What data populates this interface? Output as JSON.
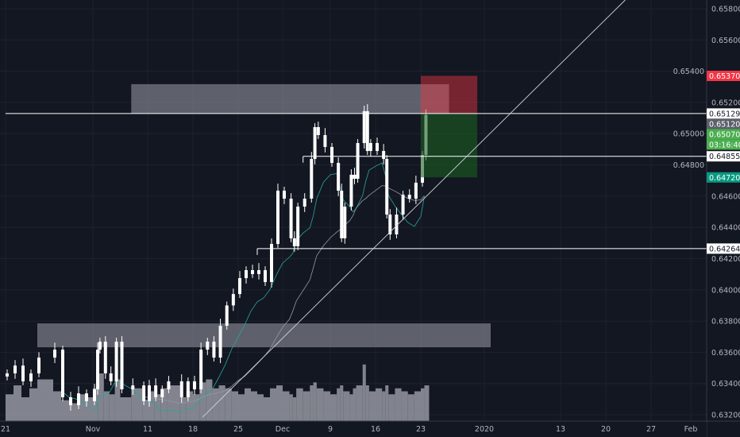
{
  "chart_data": {
    "type": "candlestick",
    "symbol_pair_quote": "",
    "y_axis": {
      "range": [
        0.6318,
        0.659
      ],
      "ticks": [
        "0.65800",
        "0.65600",
        "0.65400",
        "0.65200",
        "0.65000",
        "0.64800",
        "0.64600",
        "0.64400",
        "0.64200",
        "0.64000",
        "0.63800",
        "0.63600",
        "0.63400",
        "0.63200"
      ],
      "tick_values": [
        0.658,
        0.656,
        0.654,
        0.652,
        0.65,
        0.648,
        0.646,
        0.644,
        0.642,
        0.64,
        0.638,
        0.636,
        0.634,
        0.632
      ]
    },
    "x_axis": {
      "ticks": [
        {
          "label": "21",
          "date": "2019-10-21"
        },
        {
          "label": "Nov",
          "date": "2019-11-01"
        },
        {
          "label": "11",
          "date": "2019-11-11"
        },
        {
          "label": "18",
          "date": "2019-11-18"
        },
        {
          "label": "25",
          "date": "2019-11-25"
        },
        {
          "label": "Dec",
          "date": "2019-12-02"
        },
        {
          "label": "9",
          "date": "2019-12-09"
        },
        {
          "label": "16",
          "date": "2019-12-16"
        },
        {
          "label": "23",
          "date": "2019-12-23"
        },
        {
          "label": "2020",
          "date": "2020-01-01"
        },
        {
          "label": "13",
          "date": "2020-01-13"
        },
        {
          "label": "20",
          "date": "2020-01-20"
        },
        {
          "label": "27",
          "date": "2020-01-27"
        },
        {
          "label": "Feb",
          "date": "2020-02-03"
        }
      ]
    },
    "grid": true,
    "closes": [
      [
        "2019-10-21",
        0.63465
      ],
      [
        "2019-10-22",
        0.63515
      ],
      [
        "2019-10-23",
        0.63414
      ],
      [
        "2019-10-24",
        0.63465
      ],
      [
        "2019-10-25",
        0.63566
      ],
      [
        "2019-10-27",
        0.63617
      ],
      [
        "2019-10-28",
        0.63312
      ],
      [
        "2019-10-29",
        0.63261
      ],
      [
        "2019-10-30",
        0.63337
      ],
      [
        "2019-10-31",
        0.63287
      ],
      [
        "2019-11-01",
        0.63363
      ],
      [
        "2019-11-01T14",
        0.63617
      ],
      [
        "2019-11-02",
        0.63668
      ],
      [
        "2019-11-03",
        0.63465
      ],
      [
        "2019-11-04",
        0.63414
      ],
      [
        "2019-11-05",
        0.63668
      ],
      [
        "2019-11-06",
        0.63363
      ],
      [
        "2019-11-08",
        0.63388
      ],
      [
        "2019-11-10",
        0.63287
      ],
      [
        "2019-11-11",
        0.63388
      ],
      [
        "2019-11-12",
        0.63312
      ],
      [
        "2019-11-13",
        0.63363
      ],
      [
        "2019-11-14",
        0.63414
      ],
      [
        "2019-11-16",
        0.63312
      ],
      [
        "2019-11-17",
        0.63414
      ],
      [
        "2019-11-18",
        0.63363
      ],
      [
        "2019-11-19",
        0.63617
      ],
      [
        "2019-11-20",
        0.63668
      ],
      [
        "2019-11-21",
        0.63566
      ],
      [
        "2019-11-22",
        0.6377
      ],
      [
        "2019-11-23",
        0.639
      ],
      [
        "2019-11-24",
        0.63973
      ],
      [
        "2019-11-25",
        0.64075
      ],
      [
        "2019-11-26",
        0.64126
      ],
      [
        "2019-11-27",
        0.64101
      ],
      [
        "2019-11-28",
        0.64126
      ],
      [
        "2019-11-29",
        0.6405
      ],
      [
        "2019-11-30",
        0.64294
      ],
      [
        "2019-12-01",
        0.64635
      ],
      [
        "2019-12-02",
        0.64584
      ],
      [
        "2019-12-03",
        0.6433
      ],
      [
        "2019-12-03T12",
        0.64279
      ],
      [
        "2019-12-04",
        0.64533
      ],
      [
        "2019-12-05",
        0.64584
      ],
      [
        "2019-12-06",
        0.64838
      ],
      [
        "2019-12-06T12",
        0.65042
      ],
      [
        "2019-12-07",
        0.64991
      ],
      [
        "2019-12-08",
        0.64915
      ],
      [
        "2019-12-09",
        0.64813
      ],
      [
        "2019-12-10",
        0.64635
      ],
      [
        "2019-12-10T12",
        0.6433
      ],
      [
        "2019-12-11",
        0.64533
      ],
      [
        "2019-12-12",
        0.64737
      ],
      [
        "2019-12-12T12",
        0.64711
      ],
      [
        "2019-12-13",
        0.6494
      ],
      [
        "2019-12-14",
        0.65144
      ],
      [
        "2019-12-14T12",
        0.64889
      ],
      [
        "2019-12-15",
        0.6494
      ],
      [
        "2019-12-16",
        0.64889
      ],
      [
        "2019-12-17",
        0.64838
      ],
      [
        "2019-12-17T12",
        0.64482
      ],
      [
        "2019-12-18",
        0.64355
      ],
      [
        "2019-12-19",
        0.64482
      ],
      [
        "2019-12-20",
        0.64609
      ],
      [
        "2019-12-21",
        0.64584
      ],
      [
        "2019-12-22",
        0.64686
      ],
      [
        "2019-12-23",
        0.64864
      ],
      [
        "2019-12-23T12",
        0.6512
      ]
    ],
    "volume_relative": [
      45,
      60,
      40,
      55,
      70,
      50,
      35,
      30,
      45,
      40,
      55,
      75,
      80,
      50,
      45,
      70,
      40,
      55,
      35,
      50,
      45,
      55,
      60,
      40,
      50,
      45,
      65,
      70,
      55,
      60,
      55,
      50,
      45,
      55,
      50,
      45,
      40,
      55,
      60,
      50,
      45,
      40,
      55,
      50,
      60,
      65,
      55,
      50,
      45,
      55,
      60,
      50,
      45,
      55,
      60,
      95,
      60,
      50,
      55,
      50,
      60,
      45,
      55,
      50,
      45,
      50,
      55,
      60
    ],
    "zones": [
      {
        "name": "upper-resistance-zone",
        "low": 0.65129,
        "high": 0.65317,
        "from": "2019-11-08",
        "to": "2019-12-27",
        "color": "#787b86"
      },
      {
        "name": "lower-support-zone",
        "low": 0.63632,
        "high": 0.63785,
        "from": "2019-10-25",
        "to": "2020-01-02",
        "color": "#787b86"
      }
    ],
    "horizontal_lines": [
      {
        "price": 0.65129,
        "from": "2019-10-21"
      },
      {
        "price": 0.64855,
        "from": "2019-12-05"
      },
      {
        "price": 0.64264,
        "from": "2019-11-28"
      }
    ],
    "trend_line": {
      "from": [
        "2019-11-19T12",
        0.63185
      ],
      "to": [
        "2020-01-23",
        0.65856
      ]
    },
    "position_tool": {
      "entry": 0.65129,
      "stop": 0.6537,
      "target": 0.6472,
      "from": "2019-12-23",
      "to": "2019-12-31"
    },
    "price_labels": [
      {
        "text": "0.65370",
        "price": 0.6537,
        "bg": "#f23645",
        "fg": "#ffffff"
      },
      {
        "text": "0.65129",
        "price": 0.65129,
        "bg": "#ffffff",
        "fg": "#131722"
      },
      {
        "text": "0.65120",
        "price": 0.6512,
        "bg": "#5d606b",
        "fg": "#ffffff"
      },
      {
        "text": "0.65070",
        "price": 0.6507,
        "bg": "#4caf50",
        "fg": "#ffffff"
      },
      {
        "text": "03:16:40",
        "price": 0.6502,
        "bg": "#4caf50",
        "fg": "#ffffff"
      },
      {
        "text": "0.64855",
        "price": 0.64855,
        "bg": "#ffffff",
        "fg": "#131722"
      },
      {
        "text": "0.64720",
        "price": 0.6472,
        "bg": "#089981",
        "fg": "#ffffff"
      },
      {
        "text": "0.64264",
        "price": 0.64264,
        "bg": "#ffffff",
        "fg": "#131722"
      }
    ],
    "colors": {
      "background": "#131722",
      "candle": "#ffffff",
      "ma_fast": "#26a69a",
      "ma_slow": "#9598a1",
      "volume": "#9598a1",
      "grid": "#1e222d"
    }
  }
}
